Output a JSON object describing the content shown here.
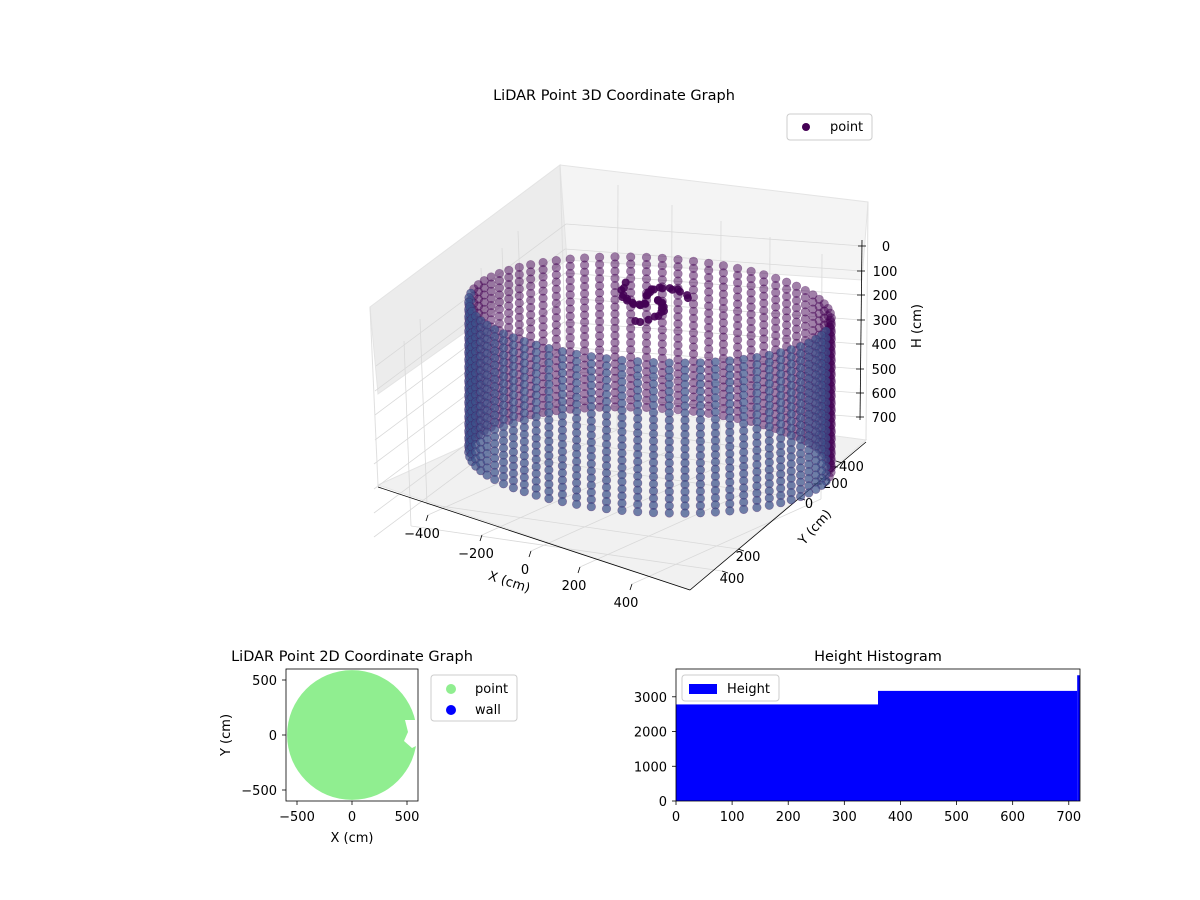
{
  "colors": {
    "pointDark": "#440154",
    "pointMid": "#3b528b",
    "pane": "#f2f2f2",
    "grid": "#d6d6d6",
    "point2d": "#90ee90",
    "wall": "#0000ff",
    "histBar": "#0000ff"
  },
  "chart_data": [
    {
      "type": "scatter",
      "title": "LiDAR Point 3D Coordinate Graph",
      "xlabel": "X (cm)",
      "ylabel": "Y (cm)",
      "zlabel": "H (cm)",
      "x_ticks": [
        "−400",
        "−200",
        "0",
        "200",
        "400"
      ],
      "y_ticks": [
        "−400",
        "−200",
        "0",
        "200",
        "400"
      ],
      "z_ticks": [
        "0",
        "100",
        "200",
        "300",
        "400",
        "500",
        "600",
        "700"
      ],
      "z_inverted": true,
      "legend": [
        "point"
      ],
      "legend_position": "top-right",
      "series": [
        {
          "name": "point",
          "shape": "open cylinder wall of points",
          "radius_cm": 560,
          "height_range_cm": [
            0,
            720
          ],
          "columns": 72,
          "rows": 22
        }
      ],
      "grid": true
    },
    {
      "type": "scatter",
      "title": "LiDAR Point 2D Coordinate Graph",
      "xlabel": "X (cm)",
      "ylabel": "Y (cm)",
      "xlim": [
        -600,
        600
      ],
      "ylim": [
        -600,
        600
      ],
      "x_ticks": [
        "−500",
        "0",
        "500"
      ],
      "y_ticks": [
        "−500",
        "0",
        "500"
      ],
      "legend": [
        "point",
        "wall"
      ],
      "legend_position": "outside right",
      "series": [
        {
          "name": "point",
          "shape": "filled disc",
          "radius_cm": 590
        },
        {
          "name": "wall",
          "values": []
        }
      ]
    },
    {
      "type": "bar",
      "title": "Height Histogram",
      "legend": [
        "Height"
      ],
      "legend_position": "top-left",
      "xlim": [
        0,
        720
      ],
      "ylim": [
        0,
        3800
      ],
      "x_ticks": [
        "0",
        "100",
        "200",
        "300",
        "400",
        "500",
        "600",
        "700"
      ],
      "y_ticks": [
        "0",
        "1000",
        "2000",
        "3000"
      ],
      "bins": [
        {
          "x0": 0,
          "x1": 360,
          "count": 2780
        },
        {
          "x0": 360,
          "x1": 715,
          "count": 3170
        },
        {
          "x0": 715,
          "x1": 720,
          "count": 3620
        }
      ]
    }
  ]
}
